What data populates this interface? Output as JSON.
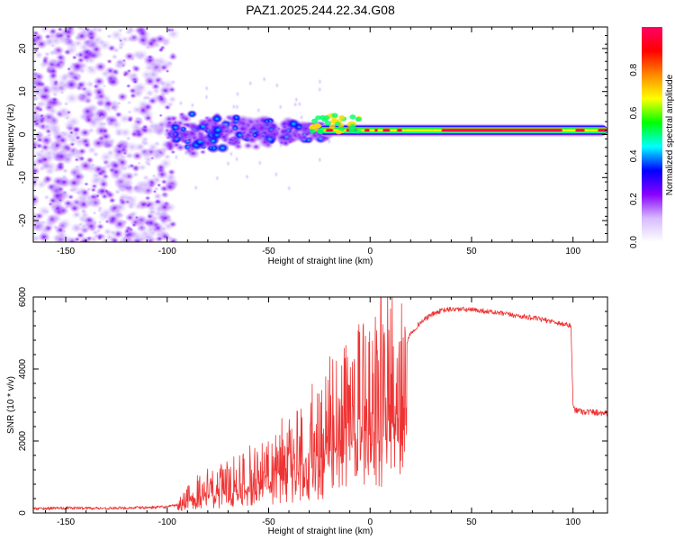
{
  "title": "PAZ1.2025.244.22.34.G08",
  "chart_data": [
    {
      "type": "heatmap",
      "name": "spectrogram",
      "xlabel": "Height of straight line (km)",
      "ylabel": "Frequency (Hz)",
      "xlim": [
        -166,
        117
      ],
      "ylim": [
        -25,
        25
      ],
      "xticks": [
        -150,
        -100,
        -50,
        0,
        50,
        100
      ],
      "yticks": [
        -20,
        -10,
        0,
        10,
        20
      ],
      "colorbar": {
        "label": "Normalized spectral amplitude",
        "range": [
          0.0,
          1.0
        ],
        "ticks": [
          0.0,
          0.2,
          0.4,
          0.6,
          0.8
        ],
        "tick_labels": [
          "0.0",
          "0.2",
          "0.4",
          "0.6",
          "0.8"
        ],
        "colormap": [
          "#ffffff",
          "#d7bbff",
          "#8800ff",
          "#0000ff",
          "#00ffff",
          "#00ff00",
          "#ffff00",
          "#ff8800",
          "#ff0000",
          "#ff0066"
        ]
      },
      "features": [
        {
          "region": "scattered noise",
          "x_range": [
            -166,
            -97
          ],
          "freq_range": [
            -25,
            25
          ],
          "amplitude": [
            0.0,
            0.15
          ]
        },
        {
          "region": "broadening signal",
          "x_range": [
            -100,
            -20
          ],
          "freq_center": 0,
          "freq_halfwidth_start": 6,
          "freq_halfwidth_end": 2,
          "amplitude": [
            0.1,
            0.35
          ]
        },
        {
          "region": "narrow tone",
          "x_range": [
            -25,
            117
          ],
          "freq_center": 1,
          "amplitude": [
            0.6,
            1.0
          ]
        }
      ]
    },
    {
      "type": "line",
      "name": "snr",
      "xlabel": "Height of straight line (km)",
      "ylabel": "SNR (10 * v/v)",
      "xlim": [
        -166,
        117
      ],
      "ylim": [
        0,
        6000
      ],
      "xticks": [
        -150,
        -100,
        -50,
        0,
        50,
        100
      ],
      "yticks": [
        0,
        2000,
        4000,
        6000
      ],
      "color": "#ee3333",
      "series": [
        {
          "name": "SNR",
          "x": [
            -166,
            -150,
            -130,
            -110,
            -100,
            -95,
            -90,
            -85,
            -80,
            -75,
            -70,
            -65,
            -60,
            -55,
            -50,
            -45,
            -40,
            -35,
            -30,
            -25,
            -20,
            -15,
            -10,
            -5,
            0,
            5,
            8,
            12,
            15,
            18,
            20,
            25,
            30,
            35,
            40,
            45,
            50,
            55,
            60,
            70,
            80,
            90,
            95,
            99,
            100,
            101,
            105,
            110,
            117
          ],
          "values": [
            120,
            140,
            130,
            150,
            170,
            220,
            500,
            700,
            800,
            900,
            1000,
            1100,
            1250,
            1350,
            1500,
            1650,
            1800,
            2000,
            2250,
            2500,
            2800,
            3000,
            3200,
            3500,
            3900,
            4200,
            4350,
            4450,
            4550,
            4750,
            5000,
            5300,
            5500,
            5620,
            5660,
            5660,
            5640,
            5620,
            5580,
            5500,
            5420,
            5320,
            5250,
            5200,
            3000,
            2870,
            2820,
            2800,
            2780
          ]
        }
      ]
    }
  ]
}
